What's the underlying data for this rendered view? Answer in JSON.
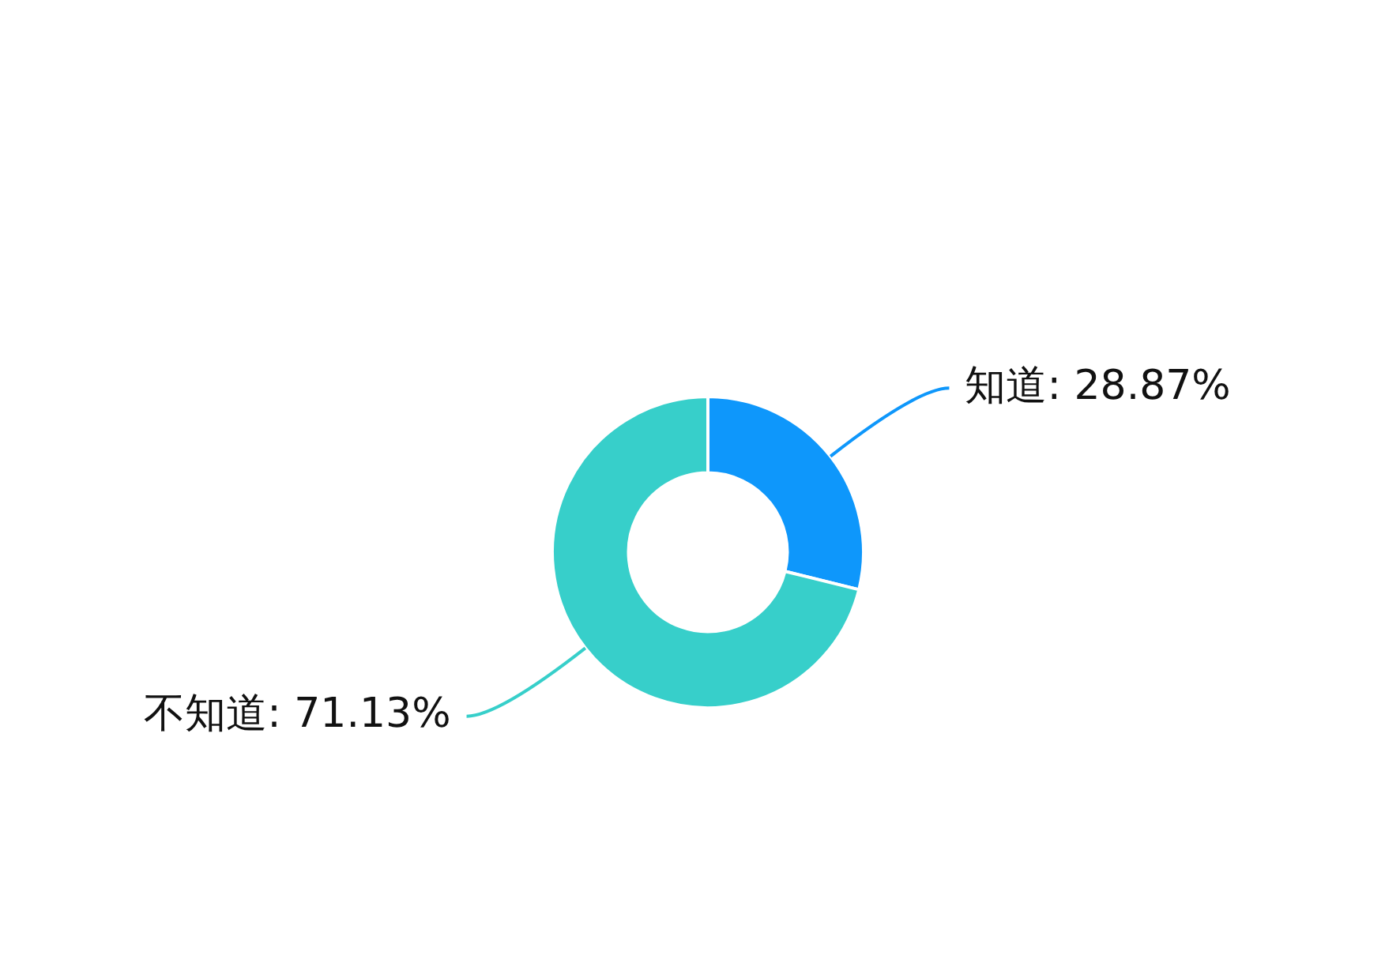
{
  "chart_data": {
    "type": "donut",
    "categories": [
      "知道",
      "不知道"
    ],
    "values": [
      28.87,
      71.13
    ],
    "colors": [
      "#0e97fb",
      "#37cfca"
    ],
    "value_labels": [
      "28.87%",
      "71.13%"
    ],
    "legend": false
  }
}
